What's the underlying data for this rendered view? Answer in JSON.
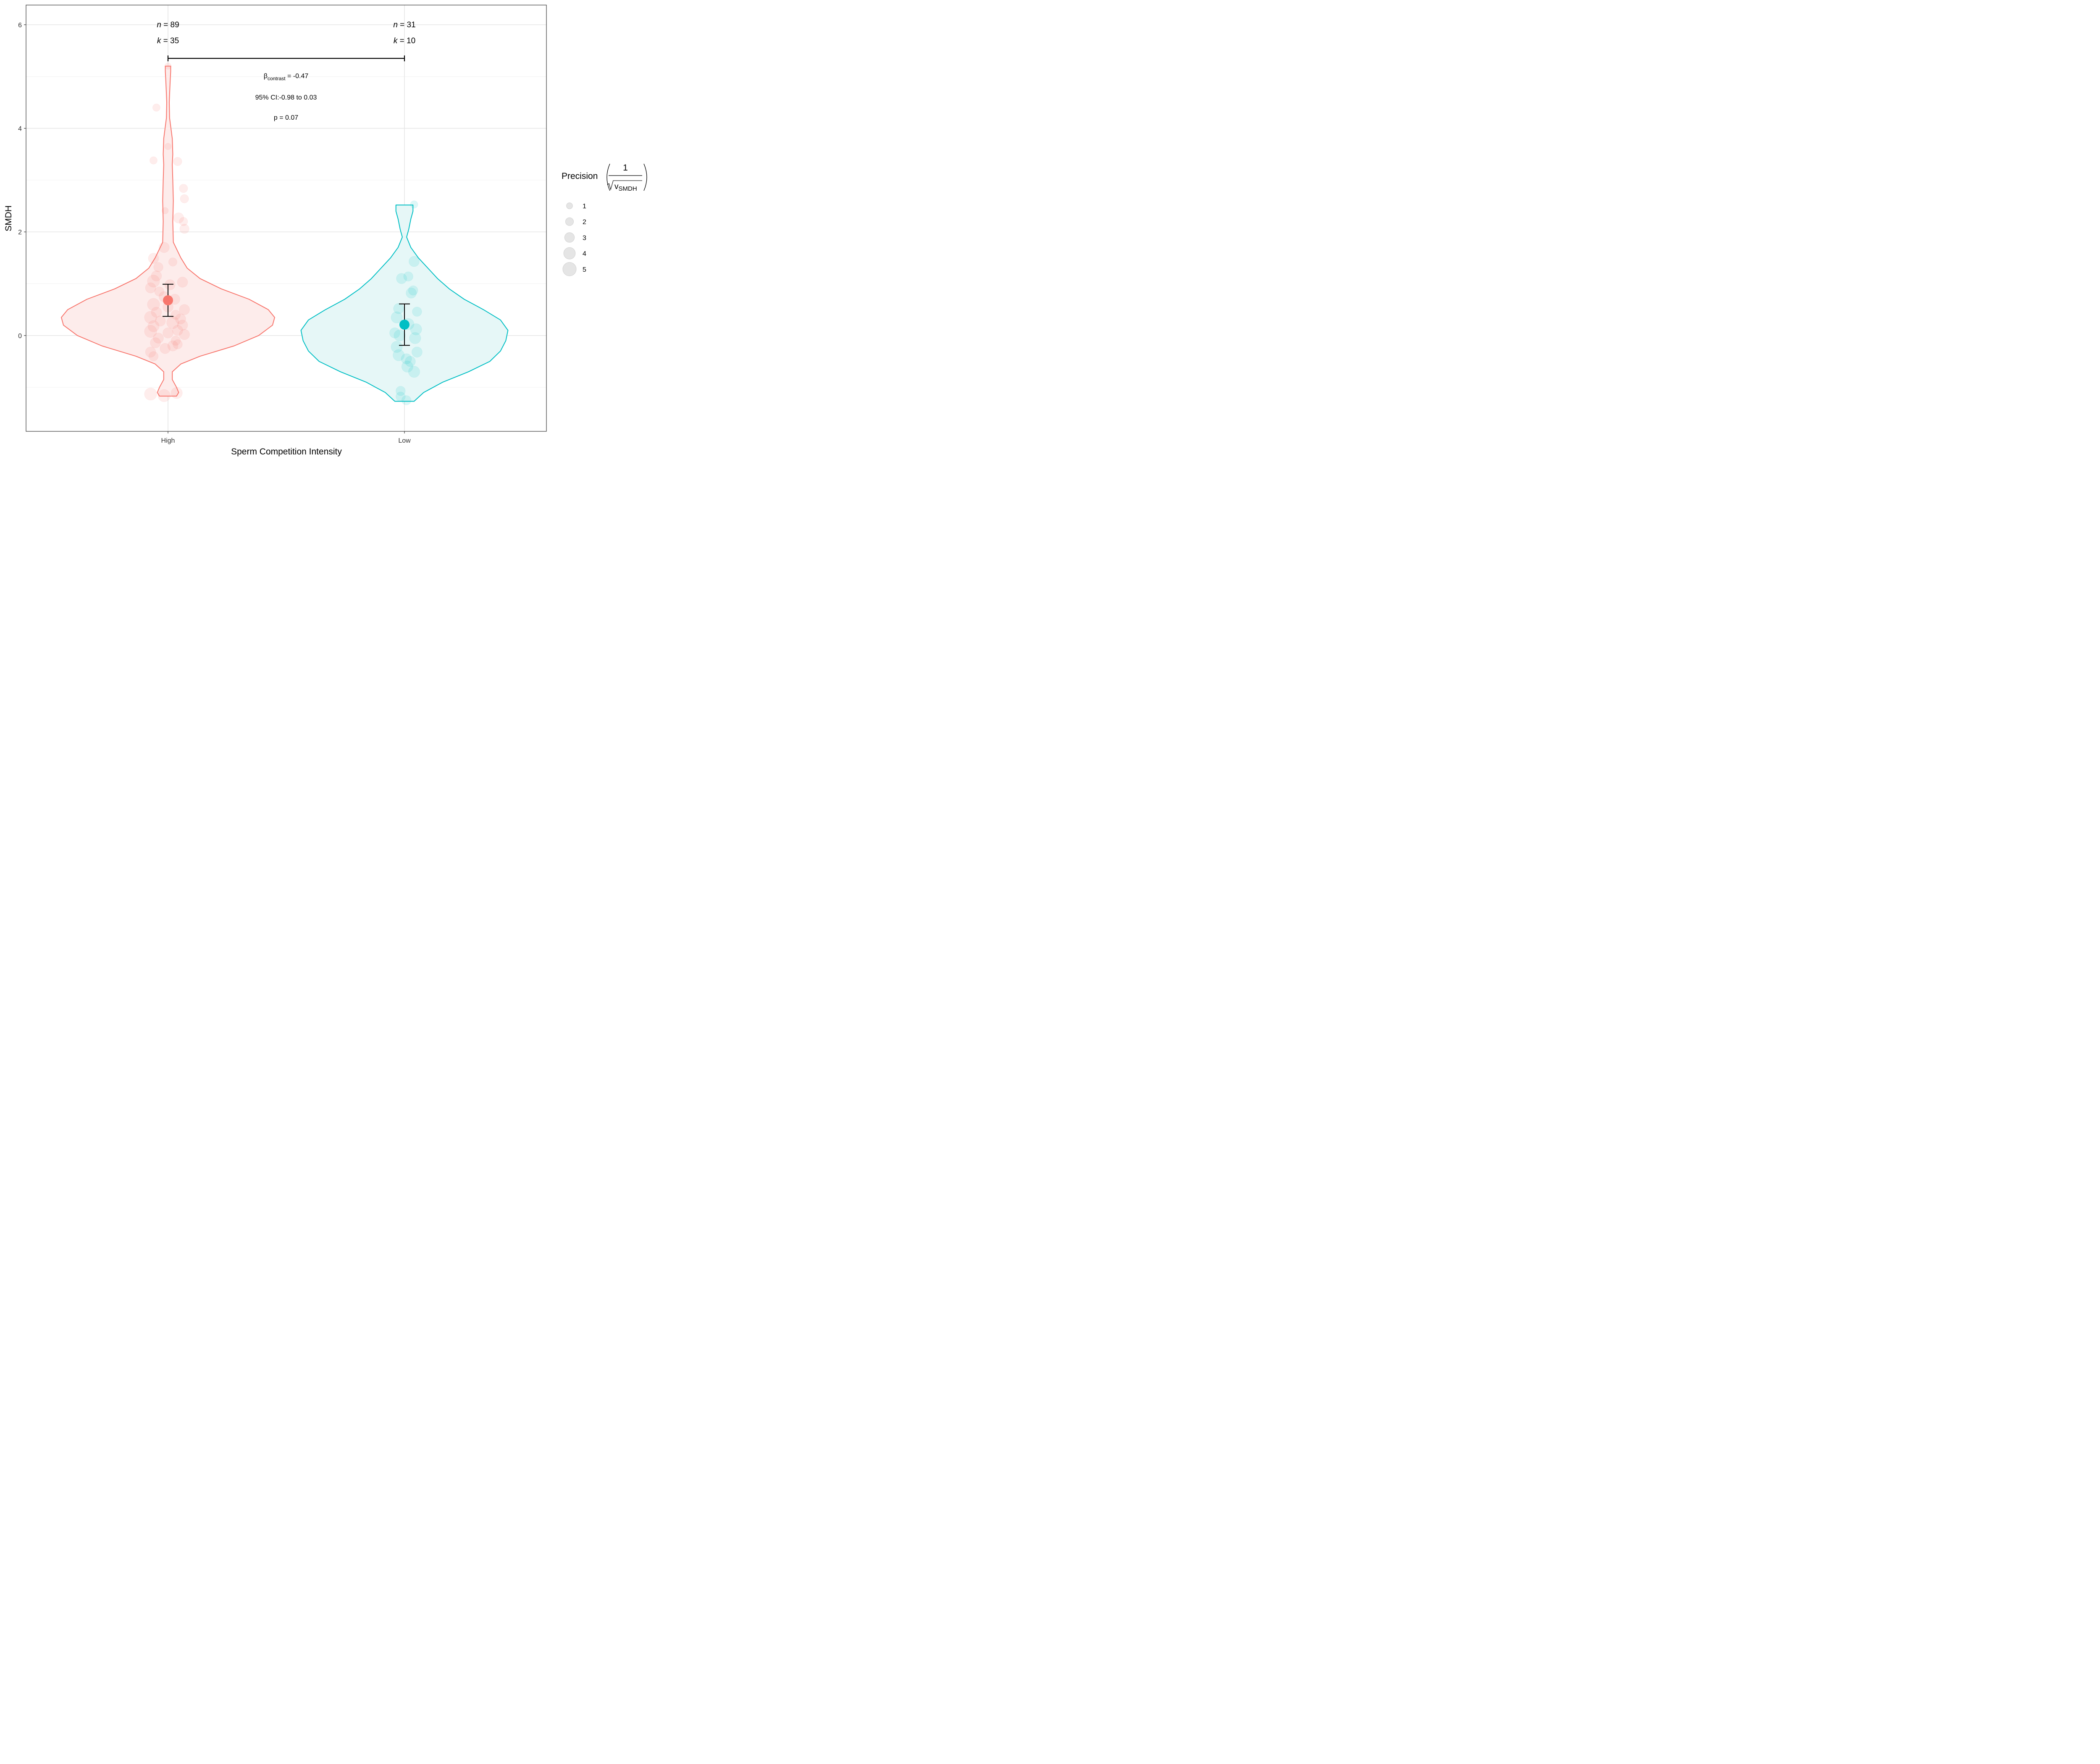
{
  "chart_data": {
    "type": "violin",
    "xlabel": "Sperm Competition Intensity",
    "ylabel": "SMDH",
    "ylim": [
      -1.85,
      6.38
    ],
    "yticks": [
      0,
      2,
      4,
      6
    ],
    "grid": true,
    "legend": {
      "position": "right",
      "title_main": "Precision",
      "title_num": "1",
      "title_den_var": "v",
      "title_den_sub": "SMDH",
      "sizes": [
        1,
        2,
        3,
        4,
        5
      ]
    },
    "groups": [
      {
        "name": "High",
        "color": "#F8766D",
        "fill": "#FDECEB",
        "n_label": "n",
        "n_value": "89",
        "k_label": "k",
        "k_value": "35",
        "estimate": 0.68,
        "ci": [
          0.37,
          0.99
        ],
        "violin": [
          [
            -1.17,
            0.08
          ],
          [
            -1.1,
            0.1
          ],
          [
            -1.0,
            0.08
          ],
          [
            -0.85,
            0.04
          ],
          [
            -0.7,
            0.04
          ],
          [
            -0.55,
            0.12
          ],
          [
            -0.4,
            0.3
          ],
          [
            -0.2,
            0.62
          ],
          [
            0.0,
            0.85
          ],
          [
            0.2,
            0.98
          ],
          [
            0.35,
            1.0
          ],
          [
            0.5,
            0.94
          ],
          [
            0.7,
            0.76
          ],
          [
            0.9,
            0.5
          ],
          [
            1.1,
            0.3
          ],
          [
            1.3,
            0.18
          ],
          [
            1.5,
            0.12
          ],
          [
            1.8,
            0.05
          ],
          [
            2.2,
            0.045
          ],
          [
            2.6,
            0.05
          ],
          [
            3.0,
            0.045
          ],
          [
            3.3,
            0.04
          ],
          [
            3.5,
            0.045
          ],
          [
            3.8,
            0.04
          ],
          [
            4.2,
            0.015
          ],
          [
            4.5,
            0.012
          ],
          [
            4.9,
            0.02
          ],
          [
            5.1,
            0.025
          ],
          [
            5.2,
            0.025
          ]
        ],
        "points": [
          {
            "x": 0.0,
            "y": 5.2,
            "p": 1
          },
          {
            "x": -0.12,
            "y": 4.4,
            "p": 1.5
          },
          {
            "x": 0.0,
            "y": 3.65,
            "p": 1
          },
          {
            "x": -0.15,
            "y": 3.38,
            "p": 1.5
          },
          {
            "x": 0.1,
            "y": 3.36,
            "p": 2
          },
          {
            "x": 0.16,
            "y": 2.84,
            "p": 2
          },
          {
            "x": 0.17,
            "y": 2.64,
            "p": 2
          },
          {
            "x": -0.03,
            "y": 2.41,
            "p": 1
          },
          {
            "x": 0.11,
            "y": 2.27,
            "p": 3
          },
          {
            "x": 0.16,
            "y": 2.2,
            "p": 2
          },
          {
            "x": 0.17,
            "y": 2.06,
            "p": 2.5
          },
          {
            "x": -0.04,
            "y": 1.7,
            "p": 3
          },
          {
            "x": -0.15,
            "y": 1.49,
            "p": 3
          },
          {
            "x": -0.1,
            "y": 1.32,
            "p": 2.5
          },
          {
            "x": 0.05,
            "y": 1.42,
            "p": 2
          },
          {
            "x": -0.12,
            "y": 1.15,
            "p": 3
          },
          {
            "x": -0.15,
            "y": 1.05,
            "p": 4
          },
          {
            "x": 0.02,
            "y": 0.98,
            "p": 3
          },
          {
            "x": 0.15,
            "y": 1.03,
            "p": 3
          },
          {
            "x": -0.18,
            "y": 0.92,
            "p": 3
          },
          {
            "x": -0.09,
            "y": 0.85,
            "p": 2.5
          },
          {
            "x": -0.04,
            "y": 0.75,
            "p": 3
          },
          {
            "x": 0.07,
            "y": 0.7,
            "p": 3
          },
          {
            "x": -0.15,
            "y": 0.6,
            "p": 4
          },
          {
            "x": 0.0,
            "y": 0.55,
            "p": 3
          },
          {
            "x": 0.17,
            "y": 0.5,
            "p": 3
          },
          {
            "x": -0.12,
            "y": 0.45,
            "p": 3
          },
          {
            "x": 0.08,
            "y": 0.4,
            "p": 2.5
          },
          {
            "x": -0.18,
            "y": 0.35,
            "p": 4
          },
          {
            "x": 0.13,
            "y": 0.32,
            "p": 3
          },
          {
            "x": -0.08,
            "y": 0.28,
            "p": 3
          },
          {
            "x": 0.05,
            "y": 0.25,
            "p": 4
          },
          {
            "x": 0.15,
            "y": 0.2,
            "p": 3
          },
          {
            "x": -0.15,
            "y": 0.18,
            "p": 3.5
          },
          {
            "x": 0.1,
            "y": 0.1,
            "p": 3
          },
          {
            "x": -0.18,
            "y": 0.08,
            "p": 4
          },
          {
            "x": 0.0,
            "y": 0.05,
            "p": 3
          },
          {
            "x": -0.1,
            "y": -0.05,
            "p": 3
          },
          {
            "x": 0.17,
            "y": 0.02,
            "p": 3
          },
          {
            "x": 0.08,
            "y": -0.1,
            "p": 2.5
          },
          {
            "x": -0.13,
            "y": -0.14,
            "p": 3
          },
          {
            "x": 0.05,
            "y": -0.2,
            "p": 3
          },
          {
            "x": -0.03,
            "y": -0.25,
            "p": 3
          },
          {
            "x": 0.1,
            "y": -0.17,
            "p": 2.5
          },
          {
            "x": -0.18,
            "y": -0.32,
            "p": 3
          },
          {
            "x": -0.15,
            "y": -0.4,
            "p": 2.5
          },
          {
            "x": -0.18,
            "y": -1.13,
            "p": 4
          },
          {
            "x": -0.04,
            "y": -1.16,
            "p": 4
          },
          {
            "x": 0.09,
            "y": -1.11,
            "p": 3.5
          }
        ]
      },
      {
        "name": "Low",
        "color": "#00BFC4",
        "fill": "#E6F7F7",
        "n_label": "n",
        "n_value": "31",
        "k_label": "k",
        "k_value": "10",
        "estimate": 0.21,
        "ci": [
          -0.19,
          0.61
        ],
        "violin": [
          [
            -1.27,
            0.09
          ],
          [
            -1.1,
            0.18
          ],
          [
            -0.9,
            0.36
          ],
          [
            -0.7,
            0.6
          ],
          [
            -0.5,
            0.8
          ],
          [
            -0.3,
            0.9
          ],
          [
            -0.1,
            0.95
          ],
          [
            0.1,
            0.97
          ],
          [
            0.3,
            0.9
          ],
          [
            0.5,
            0.74
          ],
          [
            0.7,
            0.56
          ],
          [
            0.9,
            0.42
          ],
          [
            1.1,
            0.31
          ],
          [
            1.3,
            0.22
          ],
          [
            1.5,
            0.13
          ],
          [
            1.7,
            0.06
          ],
          [
            1.9,
            0.02
          ],
          [
            2.05,
            0.04
          ],
          [
            2.25,
            0.06
          ],
          [
            2.4,
            0.08
          ],
          [
            2.52,
            0.08
          ]
        ],
        "points": [
          {
            "x": 0.1,
            "y": 2.53,
            "p": 1.5
          },
          {
            "x": 0.1,
            "y": 1.43,
            "p": 3
          },
          {
            "x": -0.03,
            "y": 1.1,
            "p": 3
          },
          {
            "x": 0.04,
            "y": 1.14,
            "p": 2.5
          },
          {
            "x": 0.09,
            "y": 0.87,
            "p": 2.5
          },
          {
            "x": 0.07,
            "y": 0.82,
            "p": 3
          },
          {
            "x": 0.13,
            "y": 0.46,
            "p": 2.5
          },
          {
            "x": -0.06,
            "y": 0.52,
            "p": 3
          },
          {
            "x": -0.08,
            "y": 0.35,
            "p": 3.5
          },
          {
            "x": 0.04,
            "y": 0.22,
            "p": 3.5
          },
          {
            "x": 0.12,
            "y": 0.12,
            "p": 3.5
          },
          {
            "x": -0.1,
            "y": 0.05,
            "p": 3
          },
          {
            "x": -0.05,
            "y": 0.0,
            "p": 3.5
          },
          {
            "x": 0.11,
            "y": -0.05,
            "p": 3.5
          },
          {
            "x": -0.08,
            "y": -0.22,
            "p": 3.5
          },
          {
            "x": 0.13,
            "y": -0.32,
            "p": 3
          },
          {
            "x": -0.06,
            "y": -0.38,
            "p": 3.5
          },
          {
            "x": 0.02,
            "y": -0.45,
            "p": 3
          },
          {
            "x": 0.06,
            "y": -0.5,
            "p": 3
          },
          {
            "x": 0.03,
            "y": -0.6,
            "p": 3.5
          },
          {
            "x": 0.1,
            "y": -0.7,
            "p": 3.5
          },
          {
            "x": -0.04,
            "y": -1.07,
            "p": 2.5
          },
          {
            "x": -0.04,
            "y": -1.18,
            "p": 2.5
          },
          {
            "x": 0.02,
            "y": -1.25,
            "p": 2.5
          }
        ]
      }
    ],
    "contrast": {
      "beta_symbol": "β",
      "beta_sub": "contrast",
      "beta_value": " = -0.47",
      "ci_text": "95% CI:-0.98 to 0.03",
      "p_text": "p = 0.07",
      "bracket_y": 5.35
    }
  }
}
